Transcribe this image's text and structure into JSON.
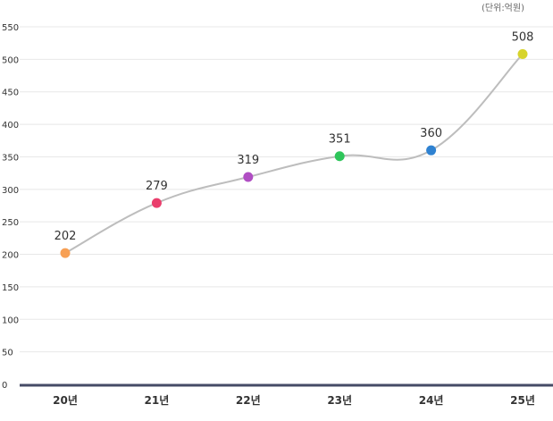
{
  "chart_data": {
    "type": "line",
    "unit_label": "(단위:억원)",
    "categories": [
      "20년",
      "21년",
      "22년",
      "23년",
      "24년",
      "25년"
    ],
    "values": [
      202,
      279,
      319,
      351,
      360,
      508
    ],
    "point_colors": [
      "#f7a055",
      "#ea3e6c",
      "#b04ec3",
      "#2ec55a",
      "#2f82d1",
      "#d7d42b"
    ],
    "line_color": "#bdbdbd",
    "axis_color": "#454b66",
    "grid": true,
    "grid_color": "#e8e8e8",
    "ylim": [
      0,
      550
    ],
    "yticks": [
      0,
      50,
      100,
      150,
      200,
      250,
      300,
      350,
      400,
      450,
      500,
      550
    ],
    "xlabel": "",
    "ylabel": ""
  }
}
